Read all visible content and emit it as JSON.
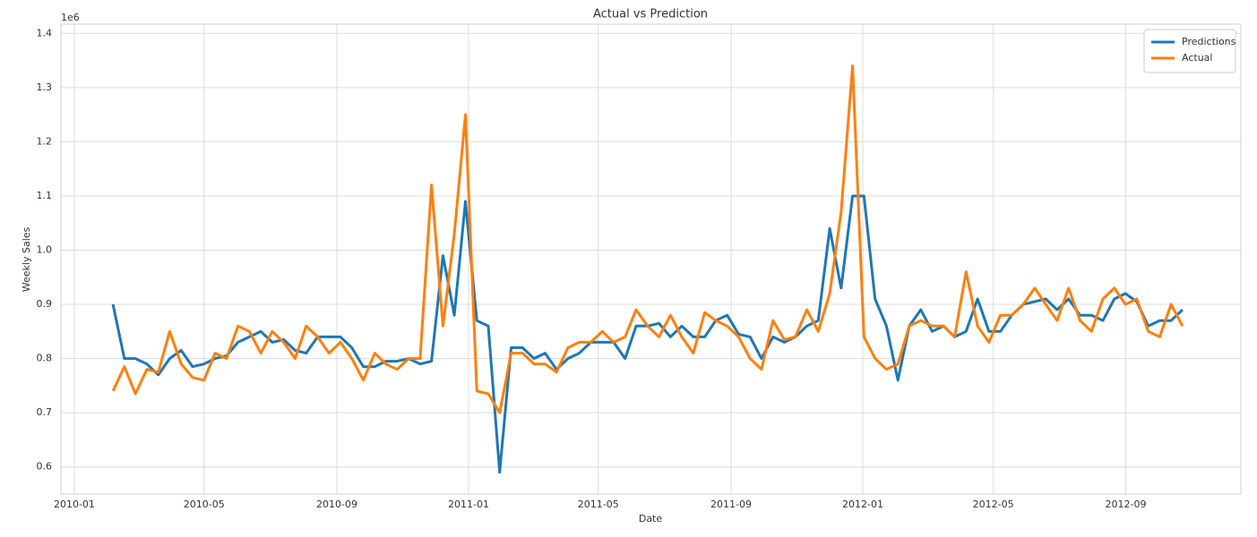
{
  "chart_data": {
    "type": "line",
    "title": "Actual vs Prediction",
    "x_label": "Date",
    "y_label": "Weekly Sales",
    "y_offset_label": "1e6",
    "x": [
      2010.098,
      2010.127,
      2010.155,
      2010.184,
      2010.213,
      2010.242,
      2010.271,
      2010.3,
      2010.329,
      2010.357,
      2010.386,
      2010.415,
      2010.444,
      2010.473,
      2010.502,
      2010.531,
      2010.56,
      2010.588,
      2010.617,
      2010.646,
      2010.675,
      2010.704,
      2010.733,
      2010.762,
      2010.79,
      2010.819,
      2010.848,
      2010.877,
      2010.906,
      2010.935,
      2010.964,
      2010.992,
      2011.021,
      2011.05,
      2011.079,
      2011.108,
      2011.137,
      2011.166,
      2011.194,
      2011.223,
      2011.252,
      2011.281,
      2011.31,
      2011.339,
      2011.368,
      2011.397,
      2011.425,
      2011.454,
      2011.483,
      2011.512,
      2011.541,
      2011.57,
      2011.599,
      2011.627,
      2011.656,
      2011.685,
      2011.714,
      2011.743,
      2011.772,
      2011.801,
      2011.829,
      2011.858,
      2011.887,
      2011.916,
      2011.945,
      2011.974,
      2012.003,
      2012.031,
      2012.06,
      2012.089,
      2012.118,
      2012.147,
      2012.176,
      2012.205,
      2012.233,
      2012.262,
      2012.291,
      2012.32,
      2012.349,
      2012.378,
      2012.407,
      2012.436,
      2012.464,
      2012.493,
      2012.522,
      2012.551,
      2012.58,
      2012.609,
      2012.638,
      2012.666,
      2012.695,
      2012.724,
      2012.753,
      2012.782,
      2012.811
    ],
    "series": [
      {
        "name": "Predictions",
        "color": "#1f77b4",
        "values": [
          0.9,
          0.8,
          0.8,
          0.79,
          0.77,
          0.8,
          0.815,
          0.785,
          0.79,
          0.8,
          0.805,
          0.83,
          0.84,
          0.85,
          0.83,
          0.835,
          0.815,
          0.81,
          0.84,
          0.84,
          0.84,
          0.82,
          0.785,
          0.785,
          0.795,
          0.795,
          0.8,
          0.79,
          0.795,
          0.99,
          0.88,
          1.09,
          0.87,
          0.86,
          0.59,
          0.82,
          0.82,
          0.8,
          0.81,
          0.78,
          0.8,
          0.81,
          0.83,
          0.83,
          0.83,
          0.8,
          0.86,
          0.86,
          0.865,
          0.84,
          0.86,
          0.84,
          0.84,
          0.87,
          0.88,
          0.845,
          0.84,
          0.8,
          0.84,
          0.83,
          0.84,
          0.86,
          0.87,
          1.04,
          0.93,
          1.1,
          1.1,
          0.91,
          0.86,
          0.76,
          0.86,
          0.89,
          0.85,
          0.86,
          0.84,
          0.85,
          0.91,
          0.85,
          0.85,
          0.88,
          0.9,
          0.905,
          0.91,
          0.89,
          0.91,
          0.88,
          0.88,
          0.87,
          0.91,
          0.92,
          0.905,
          0.86,
          0.87,
          0.87,
          0.89
        ]
      },
      {
        "name": "Actual",
        "color": "#ff7f0e",
        "values": [
          0.74,
          0.785,
          0.735,
          0.78,
          0.775,
          0.85,
          0.79,
          0.765,
          0.76,
          0.81,
          0.8,
          0.86,
          0.85,
          0.81,
          0.85,
          0.83,
          0.8,
          0.86,
          0.84,
          0.81,
          0.83,
          0.8,
          0.76,
          0.81,
          0.79,
          0.78,
          0.8,
          0.8,
          1.12,
          0.86,
          1.03,
          1.25,
          0.74,
          0.735,
          0.7,
          0.81,
          0.81,
          0.79,
          0.79,
          0.775,
          0.82,
          0.83,
          0.83,
          0.85,
          0.83,
          0.84,
          0.89,
          0.86,
          0.84,
          0.88,
          0.84,
          0.81,
          0.885,
          0.87,
          0.86,
          0.84,
          0.8,
          0.78,
          0.87,
          0.835,
          0.84,
          0.89,
          0.85,
          0.92,
          1.07,
          1.34,
          0.84,
          0.8,
          0.78,
          0.79,
          0.86,
          0.87,
          0.86,
          0.86,
          0.84,
          0.96,
          0.86,
          0.83,
          0.88,
          0.88,
          0.9,
          0.93,
          0.9,
          0.87,
          0.93,
          0.87,
          0.85,
          0.91,
          0.93,
          0.9,
          0.91,
          0.85,
          0.84,
          0.9,
          0.86
        ]
      }
    ],
    "xlim": [
      2009.966,
      2012.959
    ],
    "xticks": [
      {
        "value": 2010.0,
        "label": "2010-01"
      },
      {
        "value": 2010.329,
        "label": "2010-05"
      },
      {
        "value": 2010.666,
        "label": "2010-09"
      },
      {
        "value": 2011.0,
        "label": "2011-01"
      },
      {
        "value": 2011.329,
        "label": "2011-05"
      },
      {
        "value": 2011.666,
        "label": "2011-09"
      },
      {
        "value": 2012.0,
        "label": "2012-01"
      },
      {
        "value": 2012.331,
        "label": "2012-05"
      },
      {
        "value": 2012.667,
        "label": "2012-09"
      }
    ],
    "ylim": [
      0.55,
      1.417
    ],
    "yticks": [
      0.6,
      0.7,
      0.8,
      0.9,
      {
        "value": 1.0,
        "label": "1.0"
      },
      1.1,
      1.2,
      1.3,
      1.4
    ],
    "grid": true,
    "legend": "upper right"
  }
}
